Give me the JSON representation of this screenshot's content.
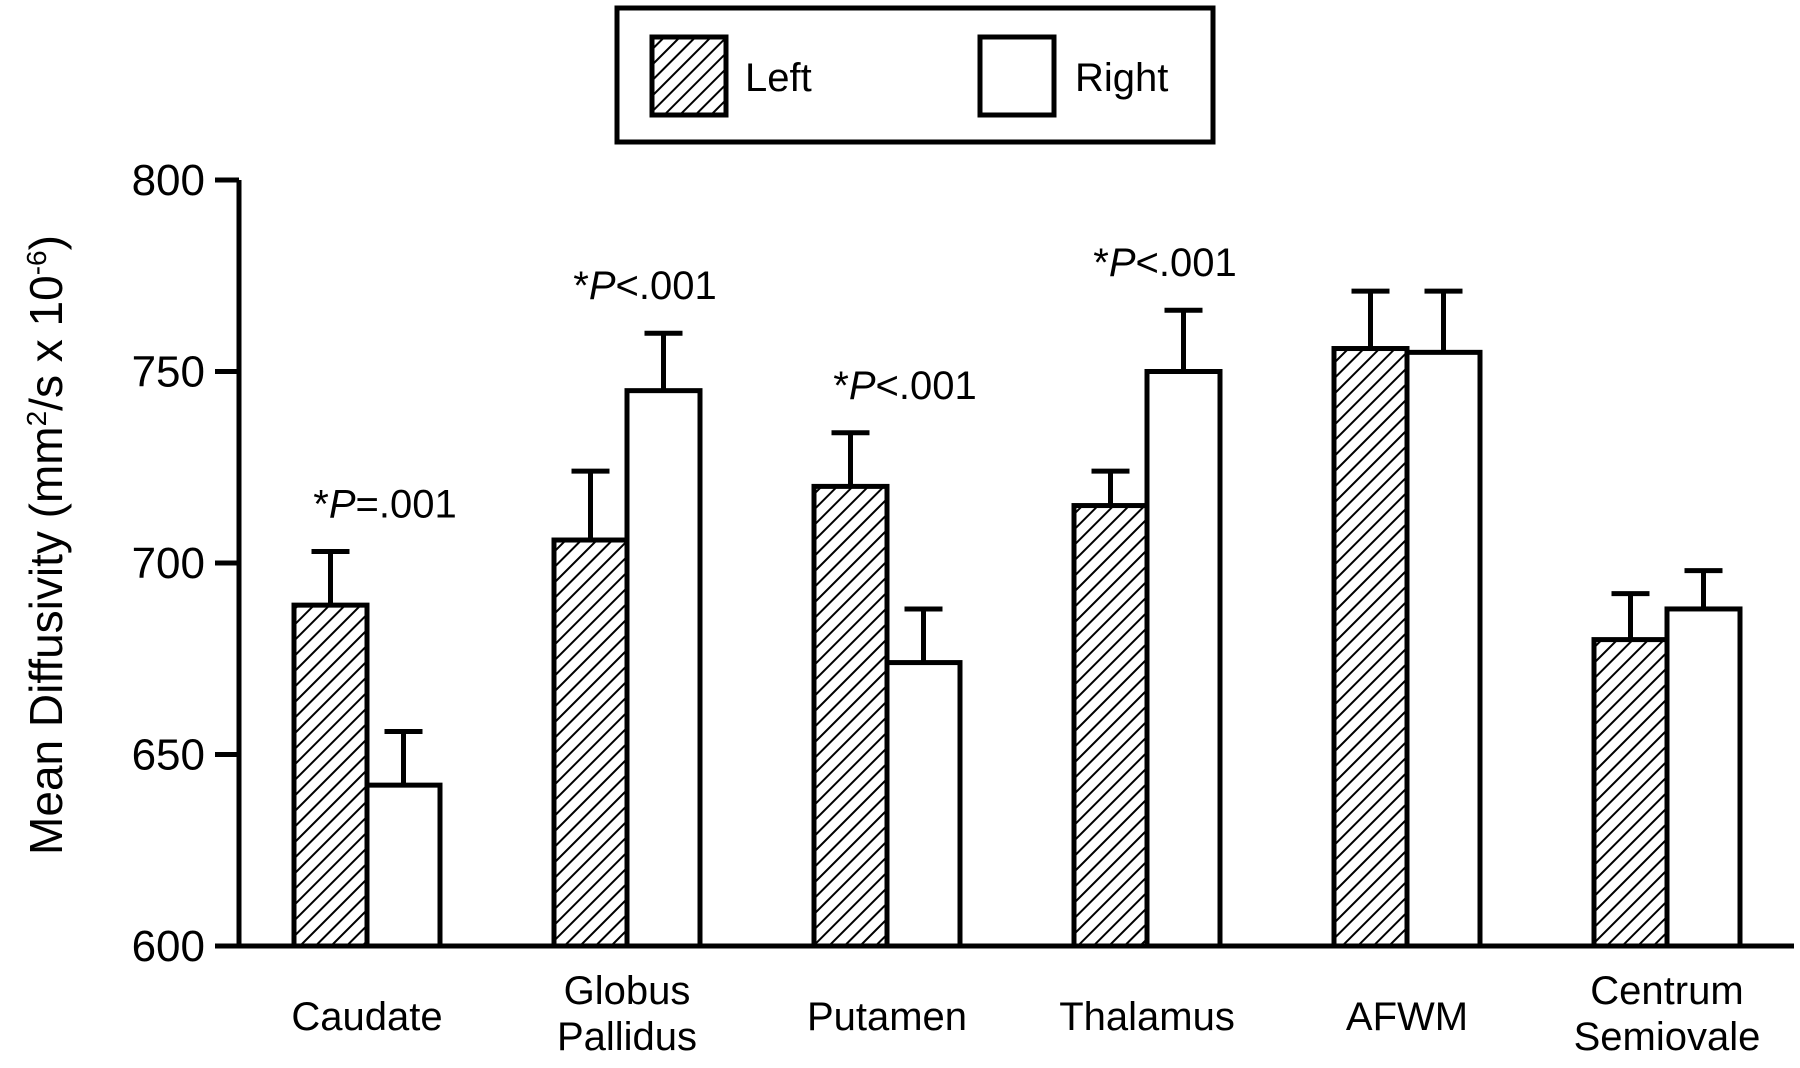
{
  "chart_data": {
    "type": "bar",
    "ylabel_main": "Mean Diffusivity (mm",
    "ylabel_sup1": "2",
    "ylabel_mid": "/s x 10",
    "ylabel_sup2": "-6",
    "ylabel_end": ")",
    "ylim": [
      600,
      800
    ],
    "yticks": [
      "800",
      "750",
      "700",
      "650",
      "600"
    ],
    "ytick_values": [
      800,
      750,
      700,
      650,
      600
    ],
    "categories": [
      {
        "lines": [
          "Caudate"
        ]
      },
      {
        "lines": [
          "Globus",
          "Pallidus"
        ]
      },
      {
        "lines": [
          "Putamen"
        ]
      },
      {
        "lines": [
          "Thalamus"
        ]
      },
      {
        "lines": [
          "AFWM"
        ]
      },
      {
        "lines": [
          "Centrum",
          "Semiovale"
        ]
      }
    ],
    "series": [
      {
        "name": "Left",
        "pattern": "hatched",
        "values": [
          689,
          706,
          720,
          715,
          756,
          680
        ],
        "errors": [
          14,
          18,
          14,
          9,
          15,
          12
        ]
      },
      {
        "name": "Right",
        "pattern": "open",
        "values": [
          642,
          745,
          674,
          750,
          755,
          688
        ],
        "errors": [
          14,
          15,
          14,
          16,
          16,
          10
        ]
      }
    ],
    "annotations": [
      {
        "category": 0,
        "star": "*",
        "p": "P",
        "rest": "=.001",
        "above_value": 703
      },
      {
        "category": 1,
        "star": "*",
        "p": "P",
        "rest": "<.001",
        "above_value": 760
      },
      {
        "category": 2,
        "star": "*",
        "p": "P",
        "rest": "<.001",
        "above_value": 734
      },
      {
        "category": 3,
        "star": "*",
        "p": "P",
        "rest": "<.001",
        "above_value": 766
      }
    ],
    "legend": {
      "position": "top-center",
      "items": [
        "Left",
        "Right"
      ]
    },
    "grid": false
  }
}
